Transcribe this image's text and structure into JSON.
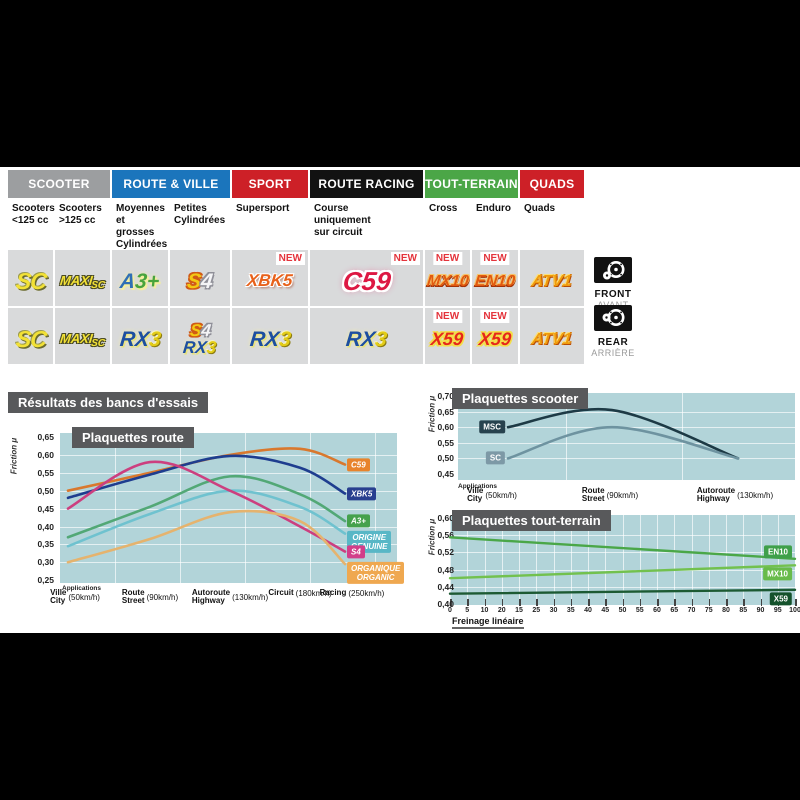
{
  "table": {
    "groups": [
      {
        "label": "SCOOTER",
        "color": "#9c9ea0",
        "span": 2
      },
      {
        "label": "ROUTE & VILLE",
        "color": "#1b75bc",
        "span": 2
      },
      {
        "label": "SPORT",
        "color": "#cd2027",
        "span": 1
      },
      {
        "label": "ROUTE RACING",
        "color": "#121212",
        "span": 1
      },
      {
        "label": "TOUT-TERRAIN",
        "color": "#4ba647",
        "span": 2
      },
      {
        "label": "QUADS",
        "color": "#cd2027",
        "span": 1
      }
    ],
    "columns": [
      {
        "lines": [
          "Scooters",
          "<125 cc"
        ]
      },
      {
        "lines": [
          "Scooters",
          ">125 cc"
        ]
      },
      {
        "lines": [
          "Moyennes",
          "et grosses",
          "Cylindrées"
        ]
      },
      {
        "lines": [
          "Petites",
          "Cylindrées"
        ]
      },
      {
        "lines": [
          "Supersport"
        ]
      },
      {
        "lines": [
          "Course",
          "uniquement",
          "sur circuit"
        ]
      },
      {
        "lines": [
          "Cross"
        ]
      },
      {
        "lines": [
          "Enduro"
        ]
      },
      {
        "lines": [
          "Quads"
        ]
      }
    ],
    "new_label": "NEW",
    "badges": {
      "SC": {
        "cls": "b-sc",
        "parts": [
          {
            "t": "SC"
          }
        ]
      },
      "MAXISC": {
        "cls": "b-maxisc",
        "parts": [
          {
            "t": "MAXI",
            "c": "maxi-main"
          },
          {
            "t": "SC",
            "c": "maxi-sub"
          }
        ]
      },
      "A3+": {
        "cls": "b-a3",
        "parts": [
          {
            "t": "A",
            "c": "pa"
          },
          {
            "t": "3+",
            "c": "p3"
          }
        ]
      },
      "S4": {
        "cls": "b-s4",
        "parts": [
          {
            "t": "S",
            "c": "ps"
          },
          {
            "t": "4",
            "c": "p4"
          }
        ]
      },
      "S4s": {
        "cls": "b-s4 small",
        "parts": [
          {
            "t": "S",
            "c": "ps"
          },
          {
            "t": "4",
            "c": "p4"
          }
        ]
      },
      "XBK5": {
        "cls": "b-xbk5",
        "parts": [
          {
            "t": "XBK5"
          }
        ]
      },
      "C59": {
        "cls": "b-c59",
        "parts": [
          {
            "t": "C59"
          }
        ]
      },
      "MX10": {
        "cls": "b-mx10",
        "parts": [
          {
            "t": "MX10"
          }
        ]
      },
      "EN10": {
        "cls": "b-en10",
        "parts": [
          {
            "t": "EN10"
          }
        ]
      },
      "ATV1": {
        "cls": "b-atv1",
        "parts": [
          {
            "t": "ATV1"
          }
        ]
      },
      "RX3": {
        "cls": "b-rx3",
        "parts": [
          {
            "t": "RX",
            "c": "prx"
          },
          {
            "t": "3",
            "c": "p3y"
          }
        ]
      },
      "RX3s": {
        "cls": "b-rx3 small",
        "parts": [
          {
            "t": "RX",
            "c": "prx"
          },
          {
            "t": "3",
            "c": "p3y"
          }
        ]
      },
      "X59": {
        "cls": "b-x59",
        "parts": [
          {
            "t": "X59"
          }
        ]
      }
    },
    "front_cells": [
      {
        "b": [
          "SC"
        ]
      },
      {
        "b": [
          "MAXISC"
        ]
      },
      {
        "b": [
          "A3+"
        ]
      },
      {
        "b": [
          "S4"
        ]
      },
      {
        "b": [
          "XBK5"
        ],
        "new": "right"
      },
      {
        "b": [
          "C59"
        ],
        "new": "right"
      },
      {
        "b": [
          "MX10"
        ],
        "new": "center"
      },
      {
        "b": [
          "EN10"
        ],
        "new": "center"
      },
      {
        "b": [
          "ATV1"
        ]
      }
    ],
    "rear_cells": [
      {
        "b": [
          "SC"
        ]
      },
      {
        "b": [
          "MAXISC"
        ]
      },
      {
        "b": [
          "RX3"
        ]
      },
      {
        "b": [
          "S4s",
          "RX3s"
        ]
      },
      {
        "b": [
          "RX3"
        ]
      },
      {
        "b": [
          "RX3"
        ]
      },
      {
        "b": [
          "X59"
        ],
        "new": "center"
      },
      {
        "b": [
          "X59"
        ],
        "new": "center"
      },
      {
        "b": [
          "ATV1"
        ]
      }
    ],
    "front_label": "FRONT",
    "front_sub": "AVANT",
    "rear_label": "REAR",
    "rear_sub": "ARRIÈRE"
  },
  "results_heading": "Résultats des bancs d'essais",
  "chart_data": [
    {
      "id": "route",
      "type": "line",
      "title": "Plaquettes route",
      "ylabel": "Friction μ",
      "x_annotation": "Applications",
      "ylim": [
        0.25,
        0.65
      ],
      "grid": true,
      "legend_position": "line-end",
      "yticks": [
        "0,65",
        "0,60",
        "0,55",
        "0,50",
        "0,45",
        "0,40",
        "0,35",
        "0,30",
        "0,25"
      ],
      "categories": [
        {
          "lines": [
            "Ville",
            "City"
          ],
          "speed": "(50km/h)"
        },
        {
          "lines": [
            "Route",
            "Street"
          ],
          "speed": "(90km/h)"
        },
        {
          "lines": [
            "Autoroute",
            "Highway"
          ],
          "speed": "(130km/h)"
        },
        {
          "lines": [
            "Circuit"
          ],
          "speed": "(180km/h)"
        },
        {
          "lines": [
            "Racing"
          ],
          "speed": "(250km/h)"
        }
      ],
      "series": [
        {
          "name": "C59",
          "color": "#d9782d",
          "label_bg": "#e8832c",
          "label_lines": [
            "C59"
          ],
          "values": [
            0.5,
            0.55,
            0.6,
            0.617,
            0.573
          ]
        },
        {
          "name": "XBK5",
          "color": "#1e3d8f",
          "label_bg": "#283f8f",
          "label_lines": [
            "XBK5"
          ],
          "values": [
            0.48,
            0.545,
            0.597,
            0.564,
            0.492
          ]
        },
        {
          "name": "A3+",
          "color": "#52a876",
          "label_bg": "#45a14d",
          "label_lines": [
            "A3+"
          ],
          "values": [
            0.37,
            0.455,
            0.54,
            0.49,
            0.415
          ]
        },
        {
          "name": "ORIGINE / GENUINE",
          "color": "#6fc2cf",
          "label_bg": "#58b7c6",
          "label_lines": [
            "ORIGINE",
            "GENUINE"
          ],
          "values": [
            0.345,
            0.435,
            0.5,
            0.455,
            0.38
          ]
        },
        {
          "name": "S4",
          "color": "#cc3f7f",
          "label_bg": "#d23f8a",
          "label_lines": [
            "S4"
          ],
          "values": [
            0.45,
            0.58,
            0.5,
            0.4,
            0.33
          ]
        },
        {
          "name": "ORGANIQUE / ORGANIC",
          "color": "#e5b36e",
          "label_bg": "#efa850",
          "label_lines": [
            "ORGANIQUE",
            "ORGANIC"
          ],
          "values": [
            0.3,
            0.365,
            0.44,
            0.415,
            0.295
          ]
        }
      ]
    },
    {
      "id": "scooter",
      "type": "line",
      "title": "Plaquettes scooter",
      "ylabel": "Friction μ",
      "x_annotation": "Applications",
      "ylim": [
        0.45,
        0.7
      ],
      "grid": true,
      "legend_position": "line-start",
      "yticks": [
        "0,70",
        "0,65",
        "0,60",
        "0,55",
        "0,50",
        "0,45"
      ],
      "categories": [
        {
          "lines": [
            "Ville",
            "City"
          ],
          "speed": "(50km/h)"
        },
        {
          "lines": [
            "Route",
            "Street"
          ],
          "speed": "(90km/h)"
        },
        {
          "lines": [
            "Autoroute",
            "Highway"
          ],
          "speed": "(130km/h)"
        }
      ],
      "series": [
        {
          "name": "MSC",
          "color": "#1d3a45",
          "label_bg": "#27424e",
          "label_lines": [
            "MSC"
          ],
          "values": [
            0.6,
            0.655,
            0.5
          ]
        },
        {
          "name": "SC",
          "color": "#6e93a0",
          "label_bg": "#7d99a6",
          "label_lines": [
            "SC"
          ],
          "values": [
            0.5,
            0.6,
            0.5
          ]
        }
      ]
    },
    {
      "id": "terrain",
      "type": "line",
      "title": "Plaquettes tout-terrain",
      "ylabel": "Friction μ",
      "xlabel": "Freinage linéaire",
      "ylim": [
        0.4,
        0.6
      ],
      "xlim": [
        0,
        100
      ],
      "grid": true,
      "legend_position": "line-end",
      "yticks": [
        "0,60",
        "0,56",
        "0,52",
        "0,48",
        "0,44",
        "0,40"
      ],
      "xticks": [
        "0",
        "5",
        "10",
        "20",
        "15",
        "25",
        "30",
        "35",
        "40",
        "45",
        "50",
        "55",
        "60",
        "65",
        "70",
        "75",
        "80",
        "85",
        "90",
        "95",
        "100"
      ],
      "series": [
        {
          "name": "EN10",
          "color": "#4aa748",
          "label_bg": "#3fa04a",
          "label_lines": [
            "EN10"
          ],
          "values": [
            0.555,
            0.505
          ]
        },
        {
          "name": "MX10",
          "color": "#72c14e",
          "label_bg": "#68bb4a",
          "label_lines": [
            "MX10"
          ],
          "values": [
            0.46,
            0.49
          ]
        },
        {
          "name": "X59",
          "color": "#1c5a33",
          "label_bg": "#14522b",
          "label_lines": [
            "X59"
          ],
          "values": [
            0.424,
            0.433
          ]
        }
      ]
    }
  ]
}
